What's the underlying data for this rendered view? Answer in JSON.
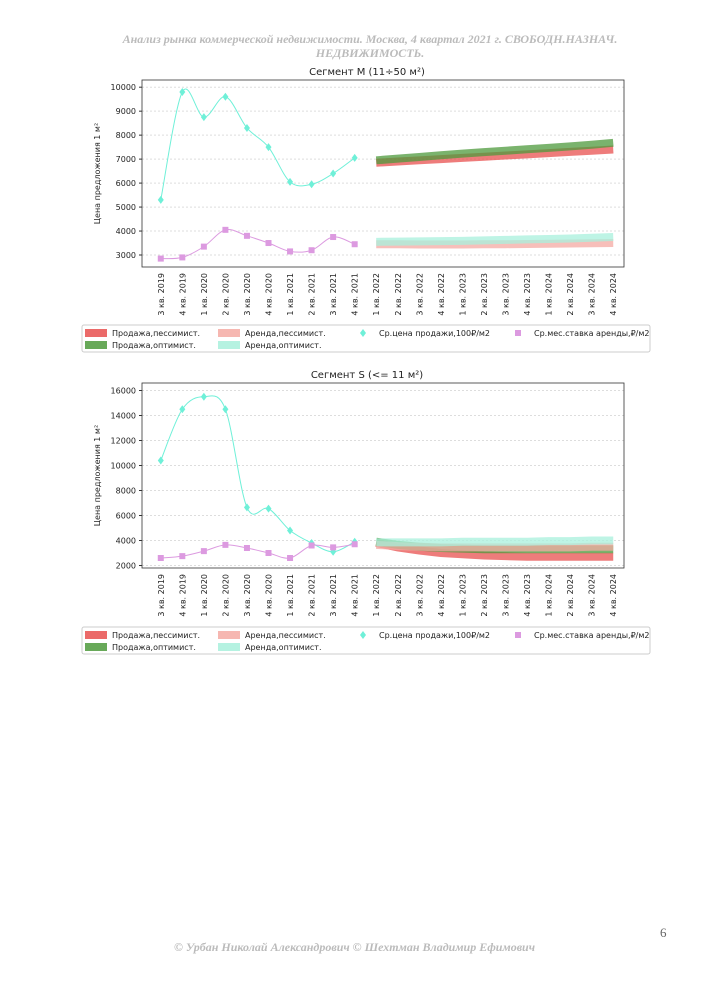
{
  "header": {
    "title": "Анализ рынка коммерческой недвижимости.  Москва,  4 квартал 2021 г.  СВОБОДН.НАЗНАЧ. НЕДВИЖИМОСТЬ."
  },
  "chart_data": [
    {
      "type": "line",
      "title": "Сегмент М (11÷50 м²)",
      "y_label": "Цена предложения 1 м²",
      "categories": [
        "3 кв. 2019",
        "4 кв. 2019",
        "1 кв. 2020",
        "2 кв. 2020",
        "3 кв. 2020",
        "4 кв. 2020",
        "1 кв. 2021",
        "2 кв. 2021",
        "3 кв. 2021",
        "4 кв. 2021",
        "1 кв. 2022",
        "2 кв. 2022",
        "3 кв. 2022",
        "4 кв. 2022",
        "1 кв. 2023",
        "2 кв. 2023",
        "3 кв. 2023",
        "4 кв. 2023",
        "1 кв. 2024",
        "2 кв. 2024",
        "3 кв. 2024",
        "4 кв. 2024"
      ],
      "ylim": [
        2500,
        10300
      ],
      "yticks": [
        3000,
        4000,
        5000,
        6000,
        7000,
        8000,
        9000,
        10000
      ],
      "grid": true,
      "series": [
        {
          "name": "Продажа,пессимист.",
          "color": "#e8504f",
          "marker": "band",
          "values": [
            null,
            null,
            null,
            null,
            null,
            null,
            null,
            null,
            null,
            null,
            6850,
            6900,
            6950,
            7000,
            7050,
            7100,
            7150,
            7200,
            7250,
            7300,
            7350,
            7400
          ]
        },
        {
          "name": "Продажа,оптимист.",
          "color": "#4e9a3c",
          "marker": "band",
          "values": [
            null,
            null,
            null,
            null,
            null,
            null,
            null,
            null,
            null,
            null,
            6950,
            7020,
            7090,
            7160,
            7230,
            7290,
            7350,
            7410,
            7470,
            7530,
            7600,
            7680
          ]
        },
        {
          "name": "Аренда,пессимист.",
          "color": "#f4aaa3",
          "marker": "band",
          "values": [
            null,
            null,
            null,
            null,
            null,
            null,
            null,
            null,
            null,
            null,
            3450,
            3450,
            3440,
            3440,
            3440,
            3450,
            3450,
            3460,
            3470,
            3480,
            3490,
            3500
          ]
        },
        {
          "name": "Аренда,оптимист.",
          "color": "#a8f0dc",
          "marker": "band",
          "values": [
            null,
            null,
            null,
            null,
            null,
            null,
            null,
            null,
            null,
            null,
            3550,
            3560,
            3570,
            3580,
            3590,
            3610,
            3630,
            3650,
            3670,
            3690,
            3720,
            3750
          ]
        },
        {
          "name": "Ср.цена продажи,100₽/м2",
          "color": "#6ff0d8",
          "marker": "diamond",
          "values": [
            5300,
            9800,
            8750,
            9600,
            8300,
            7500,
            6050,
            5950,
            6400,
            7050,
            null,
            null,
            null,
            null,
            null,
            null,
            null,
            null,
            null,
            null,
            null,
            null
          ]
        },
        {
          "name": "Ср.мес.ставка аренды,₽/м2",
          "color": "#dc9ae0",
          "marker": "square",
          "values": [
            2850,
            2900,
            3350,
            4050,
            3800,
            3500,
            3150,
            3200,
            3750,
            3450,
            null,
            null,
            null,
            null,
            null,
            null,
            null,
            null,
            null,
            null,
            null,
            null
          ]
        }
      ]
    },
    {
      "type": "line",
      "title": "Сегмент S (<= 11 м²)",
      "y_label": "Цена предложения 1 м²",
      "categories": [
        "3 кв. 2019",
        "4 кв. 2019",
        "1 кв. 2020",
        "2 кв. 2020",
        "3 кв. 2020",
        "4 кв. 2020",
        "1 кв. 2021",
        "2 кв. 2021",
        "3 кв. 2021",
        "4 кв. 2021",
        "1 кв. 2022",
        "2 кв. 2022",
        "3 кв. 2022",
        "4 кв. 2022",
        "1 кв. 2023",
        "2 кв. 2023",
        "3 кв. 2023",
        "4 кв. 2023",
        "1 кв. 2024",
        "2 кв. 2024",
        "3 кв. 2024",
        "4 кв. 2024"
      ],
      "ylim": [
        1800,
        16600
      ],
      "yticks": [
        2000,
        4000,
        6000,
        8000,
        10000,
        12000,
        14000,
        16000
      ],
      "grid": true,
      "series": [
        {
          "name": "Продажа,пессимист.",
          "color": "#e8504f",
          "marker": "band",
          "values": [
            null,
            null,
            null,
            null,
            null,
            null,
            null,
            null,
            null,
            null,
            3800,
            3450,
            3200,
            3000,
            2900,
            2800,
            2750,
            2700,
            2700,
            2700,
            2700,
            2700
          ]
        },
        {
          "name": "Продажа,оптимист.",
          "color": "#4e9a3c",
          "marker": "band",
          "values": [
            null,
            null,
            null,
            null,
            null,
            null,
            null,
            null,
            null,
            null,
            3900,
            3650,
            3500,
            3400,
            3350,
            3300,
            3300,
            3300,
            3300,
            3300,
            3300,
            3300
          ]
        },
        {
          "name": "Аренда,пессимист.",
          "color": "#f4aaa3",
          "marker": "band",
          "values": [
            null,
            null,
            null,
            null,
            null,
            null,
            null,
            null,
            null,
            null,
            3650,
            3550,
            3500,
            3450,
            3450,
            3450,
            3450,
            3450,
            3450,
            3450,
            3500,
            3500
          ]
        },
        {
          "name": "Аренда,оптимист.",
          "color": "#a8f0dc",
          "marker": "band",
          "values": [
            null,
            null,
            null,
            null,
            null,
            null,
            null,
            null,
            null,
            null,
            3850,
            3850,
            3850,
            3850,
            3900,
            3900,
            3900,
            3900,
            3950,
            3950,
            4000,
            4000
          ]
        },
        {
          "name": "Ср.цена продажи,100₽/м2",
          "color": "#6ff0d8",
          "marker": "diamond",
          "values": [
            10400,
            14500,
            15500,
            14500,
            6650,
            6550,
            4800,
            3800,
            3100,
            3900,
            null,
            null,
            null,
            null,
            null,
            null,
            null,
            null,
            null,
            null,
            null,
            null
          ]
        },
        {
          "name": "Ср.мес.ставка аренды,₽/м2",
          "color": "#dc9ae0",
          "marker": "square",
          "values": [
            2600,
            2750,
            3150,
            3650,
            3400,
            3000,
            2600,
            3600,
            3450,
            3700,
            null,
            null,
            null,
            null,
            null,
            null,
            null,
            null,
            null,
            null,
            null,
            null
          ]
        }
      ]
    }
  ],
  "footer": {
    "text": "© Урбан Николай Александрович   © Шехтман Владимир Ефимович"
  },
  "page_number": "6"
}
